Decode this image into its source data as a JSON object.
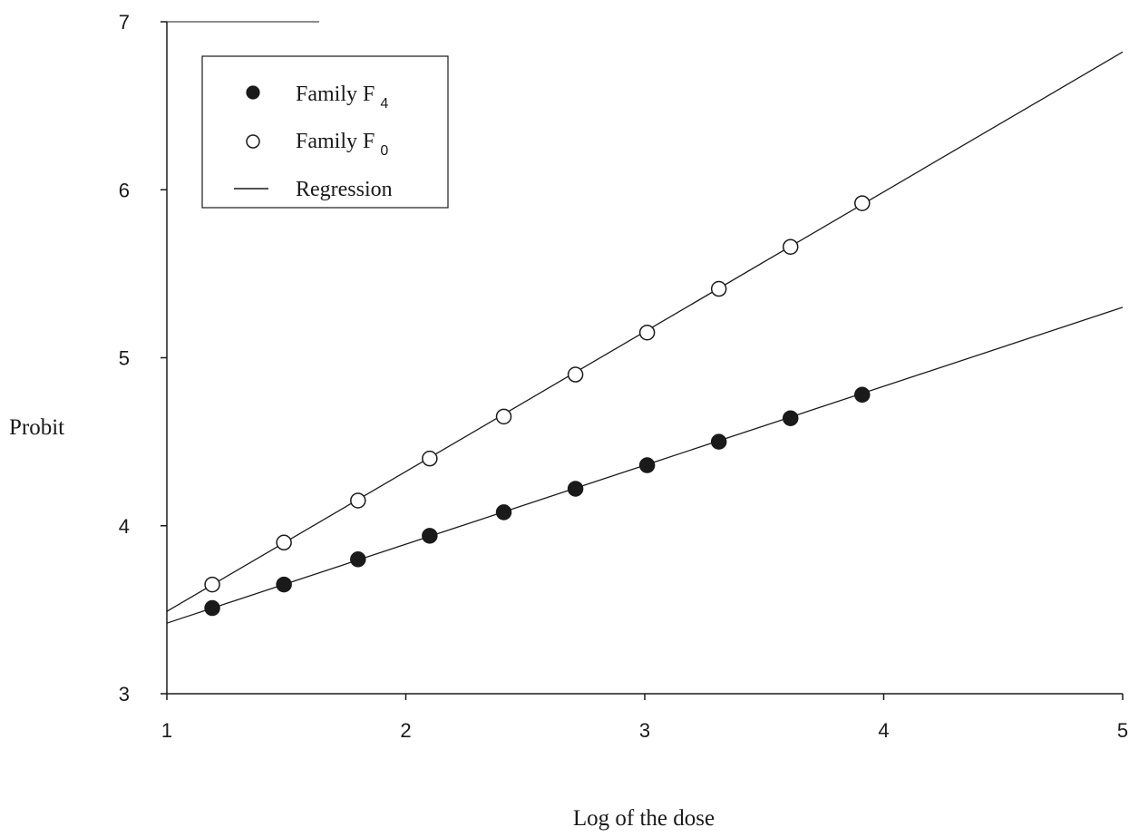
{
  "chart_data": {
    "type": "scatter",
    "xlabel": "Log of the dose",
    "ylabel": "Probit",
    "xlim": [
      1,
      5
    ],
    "ylim": [
      3,
      7
    ],
    "xticks": [
      "1",
      "2",
      "3",
      "4",
      "5"
    ],
    "yticks": [
      "3",
      "4",
      "5",
      "6",
      "7"
    ],
    "legend_position": "top-left",
    "legend": [
      {
        "marker": "filled-circle",
        "label": "Family F",
        "subscript": "4"
      },
      {
        "marker": "open-circle",
        "label": "Family F",
        "subscript": "0"
      },
      {
        "marker": "line",
        "label": "Regression"
      }
    ],
    "series": [
      {
        "marker": "filled",
        "x": [
          1.19,
          1.49,
          1.8,
          2.1,
          2.41,
          2.71,
          3.01,
          3.31,
          3.61,
          3.91
        ],
        "y": [
          3.51,
          3.65,
          3.8,
          3.94,
          4.08,
          4.22,
          4.36,
          4.5,
          4.64,
          4.78
        ],
        "regression": {
          "x": [
            1,
            5
          ],
          "y": [
            3.42,
            5.3
          ]
        }
      },
      {
        "marker": "open",
        "x": [
          1.19,
          1.49,
          1.8,
          2.1,
          2.41,
          2.71,
          3.01,
          3.31,
          3.61,
          3.91
        ],
        "y": [
          3.65,
          3.9,
          4.15,
          4.4,
          4.65,
          4.9,
          5.15,
          5.41,
          5.66,
          5.92
        ],
        "regression": {
          "x": [
            1,
            5
          ],
          "y": [
            3.49,
            6.82
          ]
        }
      }
    ],
    "colors": {
      "ink": "#1a1a1a",
      "background": "#ffffff"
    }
  }
}
